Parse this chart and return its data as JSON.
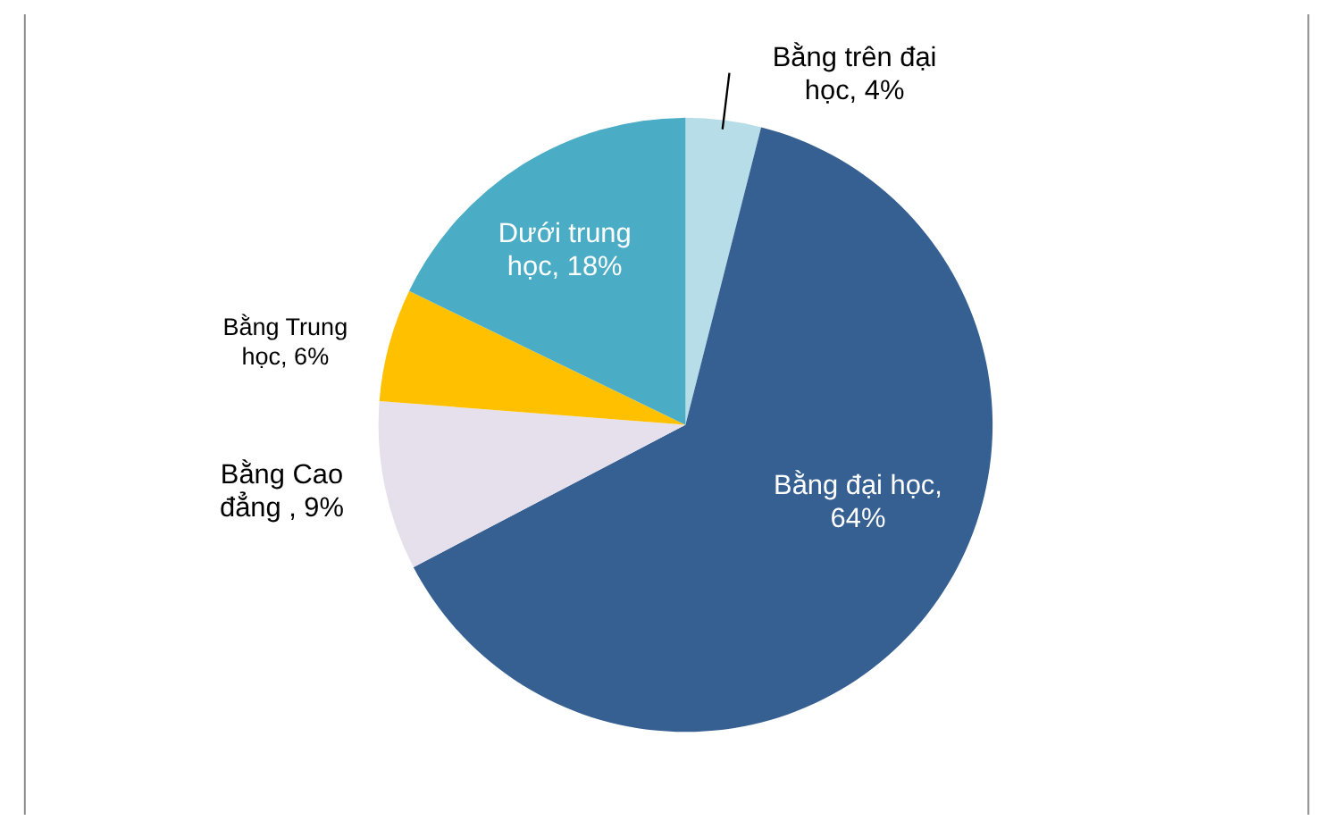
{
  "chart_data": {
    "type": "pie",
    "categories": [
      "Bằng trên đại học",
      "Bằng đại học",
      "Bằng Cao đẳng",
      "Bằng Trung học",
      "Dưới trung học"
    ],
    "values": [
      4,
      64,
      9,
      6,
      18
    ],
    "colors": [
      "#b7dde8",
      "#376092",
      "#e6e0ec",
      "#ffc000",
      "#4bacc6"
    ],
    "value_labels": [
      ", 4%",
      ", 64%",
      " , 9%",
      ", 6%",
      ", 18%"
    ]
  }
}
